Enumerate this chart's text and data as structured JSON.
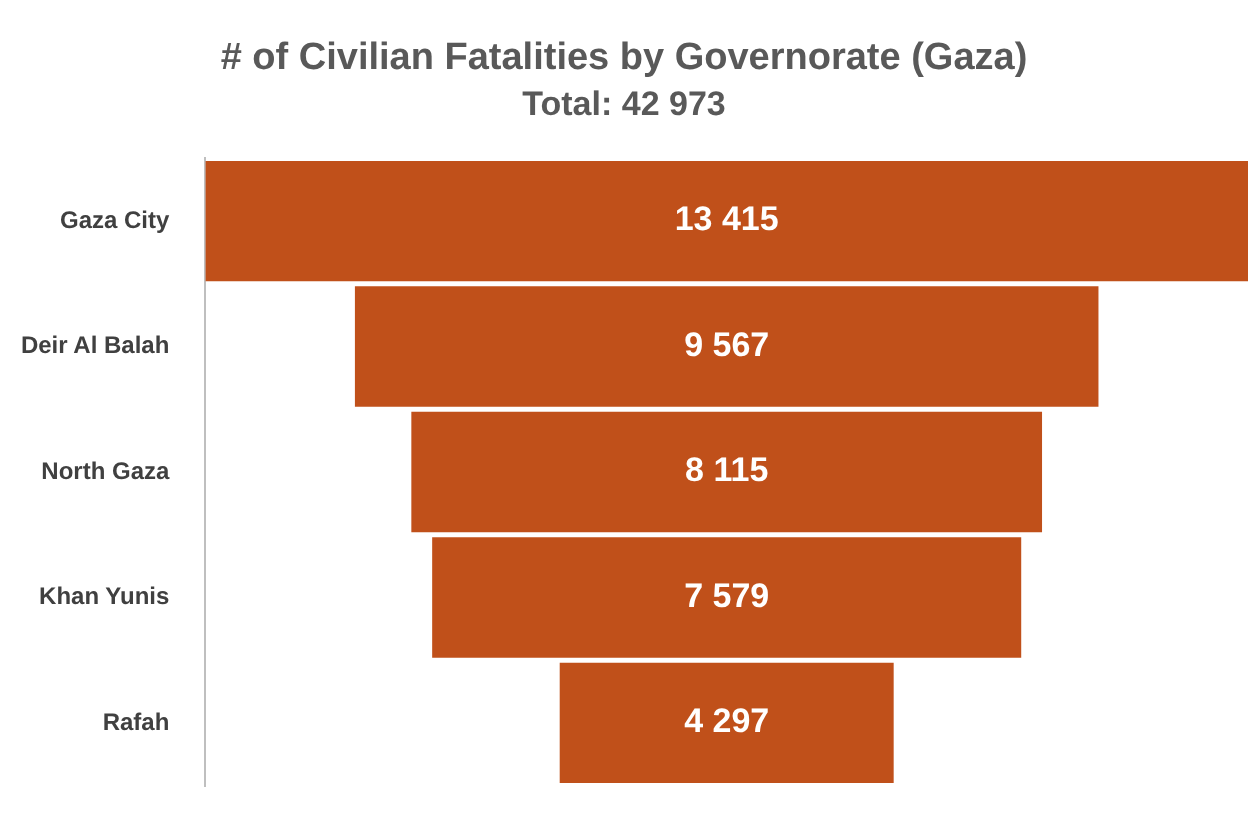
{
  "chart_data": {
    "type": "other",
    "title": "# of Civilian Fatalities by Governorate (Gaza)",
    "subtitle": "Total: 42 973",
    "categories": [
      "Gaza City",
      "Deir Al Balah",
      "North Gaza",
      "Khan Yunis",
      "Rafah"
    ],
    "values": [
      13415,
      9567,
      8115,
      7579,
      4297
    ],
    "value_labels": [
      "13 415",
      "9 567",
      "8 115",
      "7 579",
      "4 297"
    ],
    "color": "#c0501a"
  }
}
